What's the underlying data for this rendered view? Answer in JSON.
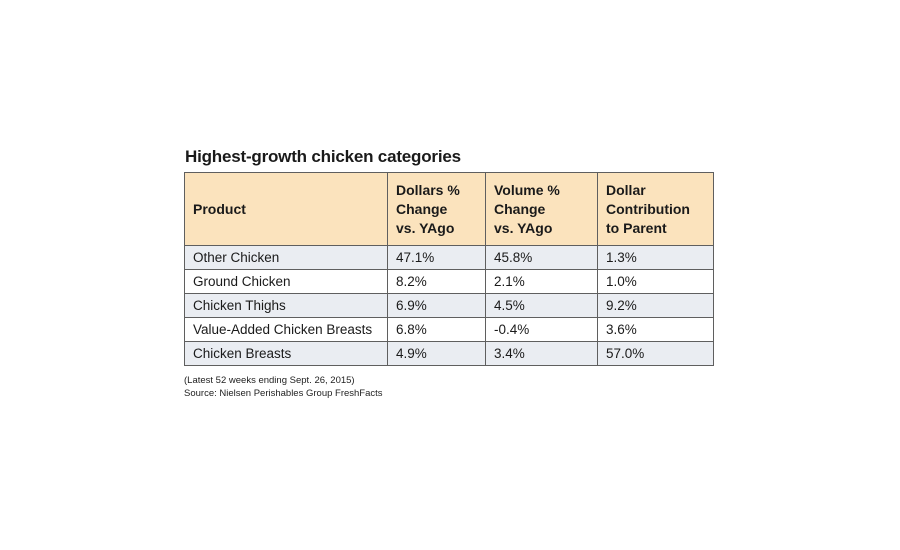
{
  "chart_data": {
    "type": "table",
    "title": "Highest-growth chicken categories",
    "columns": [
      "Product",
      "Dollars % Change vs. YAgo",
      "Volume % Change vs. YAgo",
      "Dollar Contribution to Parent"
    ],
    "header_lines": [
      [
        "Product"
      ],
      [
        "Dollars %",
        "Change",
        "vs. YAgo"
      ],
      [
        "Volume %",
        "Change",
        "vs. YAgo"
      ],
      [
        "Dollar",
        "Contribution",
        "to Parent"
      ]
    ],
    "rows": [
      [
        "Other Chicken",
        "47.1%",
        "45.8%",
        "1.3%"
      ],
      [
        "Ground Chicken",
        "8.2%",
        "2.1%",
        "1.0%"
      ],
      [
        "Chicken Thighs",
        "6.9%",
        "4.5%",
        "9.2%"
      ],
      [
        "Value-Added Chicken Breasts",
        "6.8%",
        "-0.4%",
        "3.6%"
      ],
      [
        "Chicken Breasts",
        "4.9%",
        "3.4%",
        "57.0%"
      ]
    ],
    "values": {
      "dollars_pct_change": [
        47.1,
        8.2,
        6.9,
        6.8,
        4.9
      ],
      "volume_pct_change": [
        45.8,
        2.1,
        4.5,
        -0.4,
        3.4
      ],
      "dollar_contribution_to_parent": [
        1.3,
        1.0,
        9.2,
        3.6,
        57.0
      ]
    },
    "annotations": [
      "(Latest 52 weeks ending Sept. 26, 2015)",
      "Source: Nielsen Perishables Group FreshFacts"
    ],
    "colors": {
      "header_background": "#fbe3bd",
      "odd_row_background": "#eaedf2",
      "even_row_background": "#ffffff",
      "border": "#5f5f5f"
    }
  }
}
